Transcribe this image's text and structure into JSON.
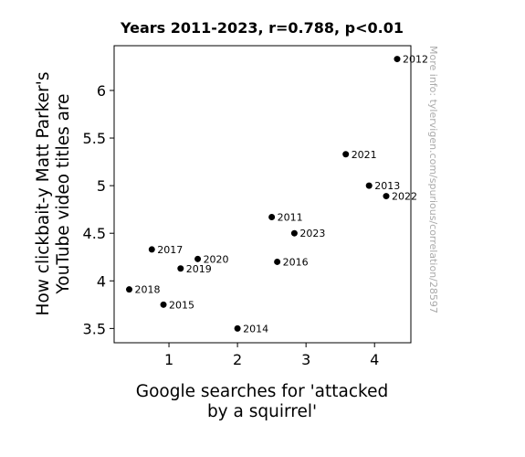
{
  "chart_data": {
    "type": "scatter",
    "title": "Years 2011-2023, r=0.788, p<0.01",
    "xlabel": [
      "Google searches for 'attacked",
      "by a squirrel'"
    ],
    "ylabel": [
      "How clickbait-y Matt Parker's",
      "YouTube video titles are"
    ],
    "xlim": [
      0.2,
      4.53
    ],
    "ylim": [
      3.35,
      6.47
    ],
    "xticks": [
      1,
      2,
      3,
      4
    ],
    "yticks": [
      3.5,
      4,
      4.5,
      5,
      5.5,
      6
    ],
    "xtick_labels": [
      "1",
      "2",
      "3",
      "4"
    ],
    "ytick_labels": [
      "3.5",
      "4",
      "4.5",
      "5",
      "5.5",
      "6"
    ],
    "grid": false,
    "points": [
      {
        "label": "2011",
        "x": 2.5,
        "y": 4.67
      },
      {
        "label": "2012",
        "x": 4.33,
        "y": 6.33
      },
      {
        "label": "2013",
        "x": 3.92,
        "y": 5.0
      },
      {
        "label": "2014",
        "x": 2.0,
        "y": 3.5
      },
      {
        "label": "2015",
        "x": 0.92,
        "y": 3.75
      },
      {
        "label": "2016",
        "x": 2.58,
        "y": 4.2
      },
      {
        "label": "2017",
        "x": 0.75,
        "y": 4.33
      },
      {
        "label": "2018",
        "x": 0.42,
        "y": 3.91
      },
      {
        "label": "2019",
        "x": 1.17,
        "y": 4.13
      },
      {
        "label": "2020",
        "x": 1.42,
        "y": 4.23
      },
      {
        "label": "2021",
        "x": 3.58,
        "y": 5.33
      },
      {
        "label": "2022",
        "x": 4.17,
        "y": 4.89
      },
      {
        "label": "2023",
        "x": 2.83,
        "y": 4.5
      }
    ]
  },
  "watermark": "More info: tylervigen.com/spurious/correlation/28597"
}
